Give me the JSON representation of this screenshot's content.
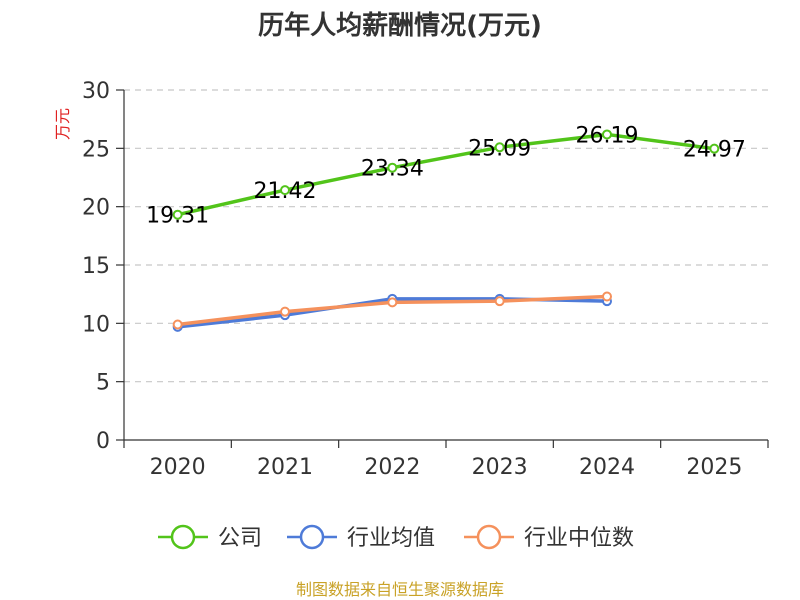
{
  "chart_data": {
    "type": "line",
    "title": "历年人均薪酬情况(万元)",
    "ylabel": "万元",
    "xlabel": "",
    "categories": [
      "2020",
      "2021",
      "2022",
      "2023",
      "2024",
      "2025"
    ],
    "ylim": [
      0,
      30
    ],
    "yticks": [
      0,
      5,
      10,
      15,
      20,
      25,
      30
    ],
    "grid": "horizontal-dashed",
    "legend_position": "bottom",
    "series": [
      {
        "name": "公司",
        "color": "#52c41a",
        "values": [
          19.31,
          21.42,
          23.34,
          25.09,
          26.19,
          24.97
        ],
        "show_labels": true
      },
      {
        "name": "行业均值",
        "color": "#4e7bd8",
        "values": [
          9.7,
          10.7,
          12.1,
          12.1,
          11.9,
          null
        ],
        "show_labels": false
      },
      {
        "name": "行业中位数",
        "color": "#f5915c",
        "values": [
          9.9,
          11.0,
          11.8,
          11.9,
          12.3,
          null
        ],
        "show_labels": false
      }
    ],
    "data_labels": [
      "19.31",
      "21.42",
      "23.34",
      "25.09",
      "26.19",
      "24.97"
    ]
  },
  "footer": {
    "source": "制图数据来自恒生聚源数据库"
  }
}
